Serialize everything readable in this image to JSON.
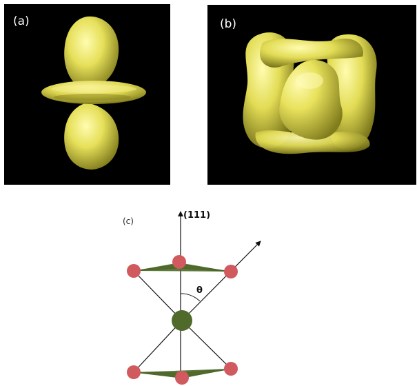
{
  "panels": {
    "a": {
      "label": "(a)"
    },
    "b": {
      "label": "(b)"
    },
    "c": {
      "label": "(c)"
    }
  },
  "diagram": {
    "axis_label": "(111)",
    "angle_label": "θ"
  },
  "colors": {
    "panel_background": "#000000",
    "lobe_fill": "#e6e05a",
    "lobe_highlight": "#fffcb0",
    "lobe_shadow": "#8f8a1e",
    "atom_red": "#d05a5e",
    "atom_green": "#4f6a2a",
    "triangle_green": "#4f6a2a",
    "line": "#111111"
  }
}
